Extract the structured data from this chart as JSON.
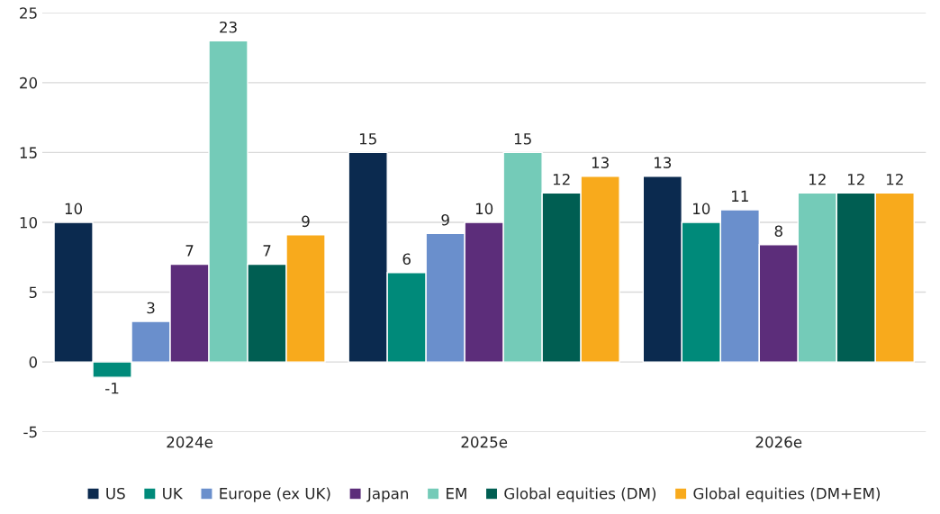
{
  "chart_data": {
    "type": "bar",
    "categories": [
      "2024e",
      "2025e",
      "2026e"
    ],
    "series": [
      {
        "name": "US",
        "color": "#0b2a4f",
        "values": [
          10.0,
          15.0,
          13.3
        ],
        "value_labels": [
          "10",
          "15",
          "13"
        ]
      },
      {
        "name": "UK",
        "color": "#008a7a",
        "values": [
          -1.1,
          6.4,
          10.0
        ],
        "value_labels": [
          "-1",
          "6",
          "10"
        ]
      },
      {
        "name": "Europe (ex UK)",
        "color": "#6a8fcc",
        "values": [
          2.9,
          9.2,
          10.9
        ],
        "value_labels": [
          "3",
          "9",
          "11"
        ]
      },
      {
        "name": "Japan",
        "color": "#5c2d7a",
        "values": [
          7.0,
          10.0,
          8.4
        ],
        "value_labels": [
          "7",
          "10",
          "8"
        ]
      },
      {
        "name": "EM",
        "color": "#74cbb8",
        "values": [
          23.0,
          15.0,
          12.1
        ],
        "value_labels": [
          "23",
          "15",
          "12"
        ]
      },
      {
        "name": "Global equities (DM)",
        "color": "#005e52",
        "values": [
          7.0,
          12.1,
          12.1
        ],
        "value_labels": [
          "7",
          "12",
          "12"
        ]
      },
      {
        "name": "Global equities (DM+EM)",
        "color": "#f8aa1c",
        "values": [
          9.1,
          13.3,
          12.1
        ],
        "value_labels": [
          "9",
          "13",
          "12"
        ]
      }
    ],
    "ylim": [
      -5,
      25
    ],
    "yticks": [
      -5,
      0,
      5,
      10,
      15,
      20,
      25
    ],
    "grid": "y",
    "legend": "bottom"
  }
}
